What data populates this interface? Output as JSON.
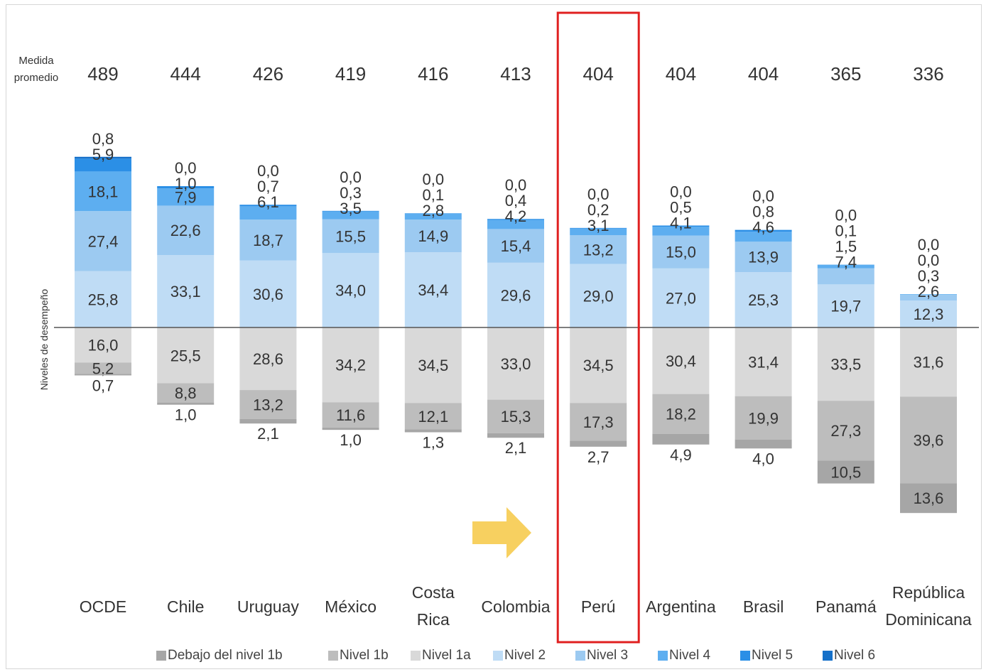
{
  "avg_label": "Medida promedio",
  "avg_label_line1": "Medida",
  "avg_label_line2": "promedio",
  "yaxis_label": "Niveles de desempeño",
  "colors": {
    "below_1b": "#a6a6a6",
    "nivel_1b": "#bdbdbd",
    "nivel_1a": "#d9d9d9",
    "nivel_2": "#bfdcf5",
    "nivel_3": "#9ccaf1",
    "nivel_4": "#5daef0",
    "nivel_5": "#2b8fe6",
    "nivel_6": "#1570c9",
    "highlight_box": "#e02020",
    "arrow": "#f7d060",
    "axis_line": "#555555"
  },
  "highlight": "Perú",
  "chart_data": {
    "type": "bar",
    "stacked": "diverging",
    "categories": [
      "OCDE",
      "Chile",
      "Uruguay",
      "México",
      "Costa Rica",
      "Colombia",
      "Perú",
      "Argentina",
      "Brasil",
      "Panamá",
      "República Dominicana"
    ],
    "category_lines": [
      [
        "OCDE"
      ],
      [
        "Chile"
      ],
      [
        "Uruguay"
      ],
      [
        "México"
      ],
      [
        "Costa",
        "Rica"
      ],
      [
        "Colombia"
      ],
      [
        "Perú"
      ],
      [
        "Argentina"
      ],
      [
        "Brasil"
      ],
      [
        "Panamá"
      ],
      [
        "República",
        "Dominicana"
      ]
    ],
    "averages": [
      "489",
      "444",
      "426",
      "419",
      "416",
      "413",
      "404",
      "404",
      "404",
      "365",
      "336"
    ],
    "series": [
      {
        "name": "Debajo del nivel 1b",
        "key": "below_1b",
        "direction": "down",
        "values": [
          0.7,
          1.0,
          2.1,
          1.0,
          1.3,
          2.1,
          2.7,
          4.9,
          4.0,
          10.5,
          13.6
        ],
        "labels": [
          "0,7",
          "1,0",
          "2,1",
          "1,0",
          "1,3",
          "2,1",
          "2,7",
          "4,9",
          "4,0",
          "10,5",
          "13,6"
        ]
      },
      {
        "name": "Nivel 1b",
        "key": "nivel_1b",
        "direction": "down",
        "values": [
          5.2,
          8.8,
          13.2,
          11.6,
          12.1,
          15.3,
          17.3,
          18.2,
          19.9,
          27.3,
          39.6
        ],
        "labels": [
          "5,2",
          "8,8",
          "13,2",
          "11,6",
          "12,1",
          "15,3",
          "17,3",
          "18,2",
          "19,9",
          "27,3",
          "39,6"
        ]
      },
      {
        "name": "Nivel 1a",
        "key": "nivel_1a",
        "direction": "down",
        "values": [
          16.0,
          25.5,
          28.6,
          34.2,
          34.5,
          33.0,
          34.5,
          30.4,
          31.4,
          33.5,
          31.6
        ],
        "labels": [
          "16,0",
          "25,5",
          "28,6",
          "34,2",
          "34,5",
          "33,0",
          "34,5",
          "30,4",
          "31,4",
          "33,5",
          "31,6"
        ]
      },
      {
        "name": "Nivel 2",
        "key": "nivel_2",
        "direction": "up",
        "values": [
          25.8,
          33.1,
          30.6,
          34.0,
          34.4,
          29.6,
          29.0,
          27.0,
          25.3,
          19.7,
          12.3
        ],
        "labels": [
          "25,8",
          "33,1",
          "30,6",
          "34,0",
          "34,4",
          "29,6",
          "29,0",
          "27,0",
          "25,3",
          "19,7",
          "12,3"
        ]
      },
      {
        "name": "Nivel 3",
        "key": "nivel_3",
        "direction": "up",
        "values": [
          27.4,
          22.6,
          18.7,
          15.5,
          14.9,
          15.4,
          13.2,
          15.0,
          13.9,
          7.4,
          2.6
        ],
        "labels": [
          "27,4",
          "22,6",
          "18,7",
          "15,5",
          "14,9",
          "15,4",
          "13,2",
          "15,0",
          "13,9",
          "7,4",
          "2,6"
        ]
      },
      {
        "name": "Nivel 4",
        "key": "nivel_4",
        "direction": "up",
        "values": [
          18.1,
          7.9,
          6.1,
          3.5,
          2.8,
          4.2,
          3.1,
          4.1,
          4.6,
          1.5,
          0.3
        ],
        "labels": [
          "18,1",
          "7,9",
          "6,1",
          "3,5",
          "2,8",
          "4,2",
          "3,1",
          "4,1",
          "4,6",
          "1,5",
          "0,3"
        ]
      },
      {
        "name": "Nivel 5",
        "key": "nivel_5",
        "direction": "up",
        "values": [
          5.9,
          1.0,
          0.7,
          0.3,
          0.1,
          0.4,
          0.2,
          0.5,
          0.8,
          0.1,
          0.0
        ],
        "labels": [
          "5,9",
          "1,0",
          "0,7",
          "0,3",
          "0,1",
          "0,4",
          "0,2",
          "0,5",
          "0,8",
          "0,1",
          "0,0"
        ]
      },
      {
        "name": "Nivel 6",
        "key": "nivel_6",
        "direction": "up",
        "values": [
          0.8,
          0.0,
          0.0,
          0.0,
          0.0,
          0.0,
          0.0,
          0.0,
          0.0,
          0.0,
          0.0
        ],
        "labels": [
          "0,8",
          "0,0",
          "0,0",
          "0,0",
          "0,0",
          "0,0",
          "0,0",
          "0,0",
          "0,0",
          "0,0",
          "0,0"
        ]
      }
    ],
    "legend": [
      "Debajo del nivel 1b",
      "Nivel 1b",
      "Nivel 1a",
      "Nivel 2",
      "Nivel 3",
      "Nivel 4",
      "Nivel 5",
      "Nivel 6"
    ],
    "legend_position": "bottom"
  }
}
